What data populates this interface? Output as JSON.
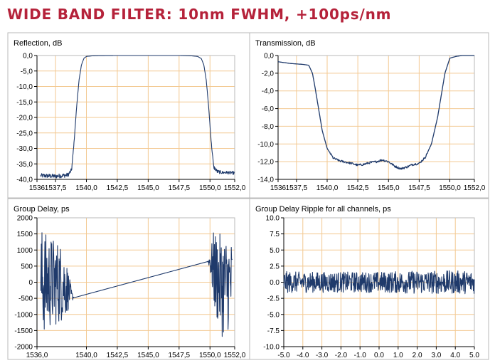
{
  "header": {
    "title": "WIDE BAND FILTER: 10nm FWHM, +100ps/nm"
  },
  "colors": {
    "title": "#b5223a",
    "series": "#1f3a6b",
    "grid": "#f3c992"
  },
  "chart_data": [
    {
      "id": "reflection",
      "type": "line",
      "title": "Reflection, dB",
      "xlabel": "",
      "ylabel": "",
      "xlim": [
        1536,
        1552
      ],
      "ylim": [
        -40,
        0
      ],
      "x_ticks": [
        1536,
        1537.5,
        1540,
        1542.5,
        1545,
        1547.5,
        1550,
        1552
      ],
      "x_tick_labels": [
        "1536",
        "1537,5",
        "1540,0",
        "1542,5",
        "1545,0",
        "1547,5",
        "1550,0",
        "1552,0"
      ],
      "y_ticks": [
        0,
        -5,
        -10,
        -15,
        -20,
        -25,
        -30,
        -35,
        -40
      ],
      "y_tick_labels": [
        "0,0",
        "-5,0",
        "-10,0",
        "-15,0",
        "-20,0",
        "-25,0",
        "-30,0",
        "-35,0",
        "-40,0"
      ],
      "grid": true,
      "series": [
        {
          "x": [
            1536.3,
            1537.0,
            1537.5,
            1538.0,
            1538.5,
            1538.8,
            1539.0,
            1539.2,
            1539.4,
            1539.6,
            1539.8,
            1540.0,
            1540.5,
            1541.0,
            1542.5,
            1545.0,
            1547.5,
            1548.5,
            1549.0,
            1549.3,
            1549.5,
            1549.7,
            1549.9,
            1550.1,
            1550.3,
            1550.6,
            1551.0,
            1551.5,
            1552.0
          ],
          "y": [
            -38.8,
            -38.9,
            -39.0,
            -38.8,
            -38.6,
            -37.0,
            -28.0,
            -17.0,
            -8.0,
            -3.0,
            -0.9,
            -0.3,
            -0.1,
            -0.05,
            0.0,
            0.0,
            0.0,
            -0.1,
            -0.3,
            -1.0,
            -3.0,
            -8.0,
            -17.0,
            -28.0,
            -36.0,
            -37.5,
            -37.8,
            -37.8,
            -38.0
          ],
          "noise": [
            0.7,
            0.7,
            0.7,
            0.7,
            0.7,
            0.6,
            0.2,
            0,
            0,
            0,
            0,
            0,
            0,
            0,
            0,
            0,
            0,
            0,
            0,
            0,
            0,
            0,
            0,
            0.3,
            0.6,
            0.6,
            0.5,
            0.5,
            0.5
          ]
        }
      ]
    },
    {
      "id": "transmission",
      "type": "line",
      "title": "Transmission, dB",
      "xlabel": "",
      "ylabel": "",
      "xlim": [
        1536,
        1552
      ],
      "ylim": [
        -14,
        0
      ],
      "x_ticks": [
        1536,
        1537.5,
        1540,
        1542.5,
        1545,
        1547.5,
        1550,
        1552
      ],
      "x_tick_labels": [
        "1536",
        "1537,5",
        "1540,0",
        "1542,5",
        "1545,0",
        "1547,5",
        "1550,0",
        "1552,0"
      ],
      "y_ticks": [
        0,
        -2,
        -4,
        -6,
        -8,
        -10,
        -12,
        -14
      ],
      "y_tick_labels": [
        "0,0",
        "-2,0",
        "-4,0",
        "-6,0",
        "-8,0",
        "-10,0",
        "-12,0",
        "-14,0"
      ],
      "grid": true,
      "series": [
        {
          "x": [
            1536.0,
            1537.0,
            1538.0,
            1538.5,
            1538.8,
            1539.0,
            1539.3,
            1539.6,
            1540.0,
            1540.5,
            1541.0,
            1542.0,
            1542.5,
            1543.0,
            1543.5,
            1544.0,
            1544.5,
            1545.0,
            1545.5,
            1546.0,
            1546.5,
            1547.0,
            1547.5,
            1548.0,
            1548.5,
            1549.0,
            1549.3,
            1549.6,
            1550.0,
            1550.5,
            1551.0,
            1552.0
          ],
          "y": [
            -0.7,
            -0.9,
            -1.0,
            -1.1,
            -2.0,
            -3.5,
            -6.0,
            -8.5,
            -10.5,
            -11.6,
            -11.9,
            -12.2,
            -12.4,
            -12.3,
            -12.1,
            -12.0,
            -11.8,
            -12.0,
            -12.5,
            -12.8,
            -12.6,
            -12.3,
            -12.2,
            -11.5,
            -10.0,
            -7.0,
            -4.5,
            -2.0,
            -0.3,
            -0.1,
            0.0,
            0.0
          ]
        }
      ]
    },
    {
      "id": "group-delay",
      "type": "line",
      "title": "Group Delay, ps",
      "xlabel": "",
      "ylabel": "",
      "xlim": [
        1536,
        1552
      ],
      "ylim": [
        -2000,
        2000
      ],
      "x_ticks": [
        1536,
        1540,
        1542.5,
        1545,
        1547.5,
        1550,
        1552
      ],
      "x_tick_labels": [
        "1536,0",
        "1540,0",
        "1542,5",
        "1545,0",
        "1547,5",
        "1550,0",
        "1552,0"
      ],
      "y_ticks": [
        2000,
        1500,
        1000,
        500,
        0,
        -500,
        -1000,
        -1500,
        -2000
      ],
      "y_tick_labels": [
        "2000",
        "1500",
        "1000",
        "500",
        "0",
        "-500",
        "-1000",
        "-1500",
        "-2000"
      ],
      "grid": true,
      "series": [
        {
          "x": [
            1536.3,
            1536.8,
            1537.3,
            1537.8,
            1538.3,
            1538.6,
            1538.8,
            1539.0,
            1549.8,
            1550.0,
            1550.3,
            1550.6,
            1551.0,
            1551.4,
            1551.8
          ],
          "y": [
            0,
            0,
            0,
            0,
            -100,
            -300,
            -430,
            -480,
            640,
            650,
            400,
            100,
            -100,
            -50,
            0
          ],
          "noise": [
            1750,
            1500,
            1400,
            1300,
            1000,
            500,
            200,
            0,
            0,
            250,
            1200,
            1400,
            1600,
            1500,
            1300
          ]
        }
      ]
    },
    {
      "id": "group-delay-ripple",
      "type": "line",
      "title": "Group Delay Ripple for all channels, ps",
      "xlabel": "",
      "ylabel": "",
      "xlim": [
        -5,
        5
      ],
      "ylim": [
        -10,
        10
      ],
      "x_ticks": [
        -5,
        -4,
        -3,
        -2,
        -1,
        0,
        1,
        2,
        3,
        4,
        5
      ],
      "x_tick_labels": [
        "-5.0",
        "-4.0",
        "-3.0",
        "-2.0",
        "-1.0",
        "0.0",
        "1.0",
        "2.0",
        "3.0",
        "4.0",
        "5.0"
      ],
      "y_ticks": [
        10,
        7.5,
        5,
        2.5,
        0,
        -2.5,
        -5,
        -7.5,
        -10
      ],
      "y_tick_labels": [
        "10.0",
        "7.5",
        "5.0",
        "2.5",
        "0.0",
        "-2.5",
        "-5.0",
        "-7.5",
        "-10.0"
      ],
      "grid": true,
      "series": [
        {
          "x": [
            -5.0,
            -4.0,
            -3.0,
            -2.0,
            -1.0,
            0.0,
            1.0,
            2.0,
            3.0,
            4.0,
            5.0
          ],
          "y": [
            0,
            0,
            0,
            0,
            0,
            0,
            0,
            0,
            0,
            0,
            0
          ],
          "noise": [
            1.7,
            1.6,
            1.6,
            1.6,
            1.6,
            1.6,
            1.7,
            1.8,
            1.8,
            1.8,
            1.8
          ]
        }
      ]
    }
  ]
}
